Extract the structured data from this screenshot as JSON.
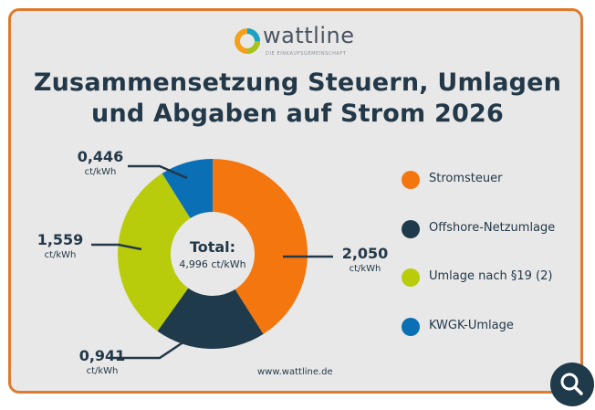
{
  "brand": {
    "name": "wattline",
    "tagline": "DIE EINKAUFSGEMEINSCHAFT",
    "website": "www.wattline.de"
  },
  "title": {
    "line1": "Zusammensetzung Steuern, Umlagen",
    "line2": "und Abgaben auf Strom 2026"
  },
  "chart_data": {
    "type": "pie",
    "variant": "donut",
    "unit": "ct/kWh",
    "center_label": "Total:",
    "center_value": "4,996 ct/kWh",
    "total": 4.996,
    "slices": [
      {
        "name": "Stromsteuer",
        "value": 2.05,
        "label": "2,050",
        "color": "#f4760e"
      },
      {
        "name": "Offshore-Netzumlage",
        "value": 0.941,
        "label": "0,941",
        "color": "#1f3a4a"
      },
      {
        "name": "Umlage nach §19 (2)",
        "value": 1.559,
        "label": "1,559",
        "color": "#b8cc0c"
      },
      {
        "name": "KWGK-Umlage",
        "value": 0.446,
        "label": "0,446",
        "color": "#0a6fb5"
      }
    ],
    "legend_position": "right"
  },
  "icons": {
    "search_button": "search-icon"
  }
}
